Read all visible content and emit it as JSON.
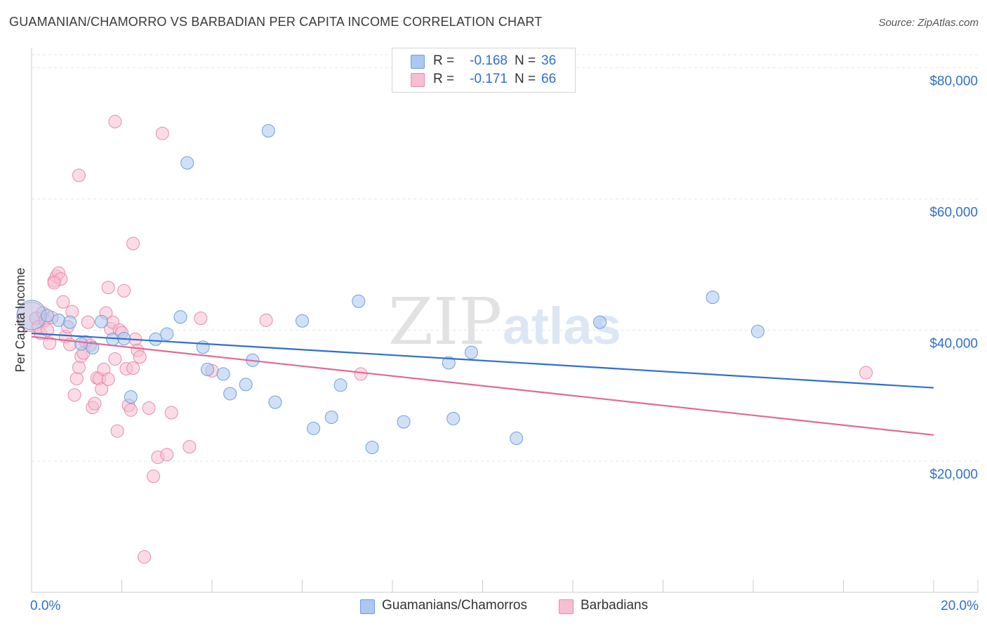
{
  "header": {
    "title": "GUAMANIAN/CHAMORRO VS BARBADIAN PER CAPITA INCOME CORRELATION CHART",
    "source": "Source: ZipAtlas.com"
  },
  "stats": {
    "rows": [
      {
        "r_label": "R =",
        "r_value": "-0.168",
        "n_label": "N =",
        "n_value": "36",
        "color": "#aac8f0",
        "border": "#6f9fdc"
      },
      {
        "r_label": "R =",
        "r_value": "-0.171",
        "n_label": "N =",
        "n_value": "66",
        "color": "#f7bfd1",
        "border": "#e88aaa"
      }
    ]
  },
  "legend": {
    "items": [
      {
        "label": "Guamanians/Chamorros",
        "color": "#aac8f0",
        "border": "#6f9fdc"
      },
      {
        "label": "Barbadians",
        "color": "#f7bfd1",
        "border": "#e88aaa"
      }
    ]
  },
  "watermark": {
    "zip": "ZIP",
    "atlas": "atlas"
  },
  "chart_data": {
    "type": "scatter",
    "title": "GUAMANIAN/CHAMORRO VS BARBADIAN PER CAPITA INCOME CORRELATION CHART",
    "xlabel": "",
    "ylabel": "Per Capita Income",
    "xlim": [
      0,
      20
    ],
    "ylim": [
      0,
      82000
    ],
    "x_tick_labels": [
      {
        "value": 0,
        "label": "0.0%"
      },
      {
        "value": 20,
        "label": "20.0%"
      }
    ],
    "y_ticks": [
      {
        "value": 20000,
        "label": "$20,000"
      },
      {
        "value": 40000,
        "label": "$40,000"
      },
      {
        "value": 60000,
        "label": "$60,000"
      },
      {
        "value": 80000,
        "label": "$80,000"
      }
    ],
    "grid": true,
    "colors": {
      "series_a_fill": "#aac8f0",
      "series_a_stroke": "#6f9fdc",
      "series_a_line": "#2f6fd0",
      "series_b_fill": "#f7bfd1",
      "series_b_stroke": "#e88aaa",
      "series_b_line": "#e06a95",
      "tick_label": "#2f6fd0",
      "grid": "#e6e6e6",
      "axis": "#cccccc"
    },
    "series": [
      {
        "name": "Guamanians/Chamorros",
        "trend": {
          "x": [
            0,
            20
          ],
          "y": [
            39500,
            31200
          ]
        },
        "points": [
          {
            "x": 0.0,
            "y": 42300,
            "big": true
          },
          {
            "x": 0.35,
            "y": 42200
          },
          {
            "x": 0.6,
            "y": 41500
          },
          {
            "x": 0.85,
            "y": 41200
          },
          {
            "x": 1.1,
            "y": 37900
          },
          {
            "x": 1.35,
            "y": 37300
          },
          {
            "x": 1.55,
            "y": 41300
          },
          {
            "x": 1.8,
            "y": 38600
          },
          {
            "x": 2.05,
            "y": 38700
          },
          {
            "x": 2.2,
            "y": 29800
          },
          {
            "x": 2.75,
            "y": 38600
          },
          {
            "x": 3.0,
            "y": 39400
          },
          {
            "x": 3.3,
            "y": 42000
          },
          {
            "x": 3.45,
            "y": 65500
          },
          {
            "x": 3.8,
            "y": 37400
          },
          {
            "x": 3.9,
            "y": 34000
          },
          {
            "x": 4.25,
            "y": 33300
          },
          {
            "x": 4.4,
            "y": 30300
          },
          {
            "x": 4.75,
            "y": 31700
          },
          {
            "x": 4.9,
            "y": 35400
          },
          {
            "x": 5.25,
            "y": 70400
          },
          {
            "x": 5.4,
            "y": 29000
          },
          {
            "x": 6.0,
            "y": 41400
          },
          {
            "x": 6.25,
            "y": 25000
          },
          {
            "x": 6.65,
            "y": 26700
          },
          {
            "x": 6.85,
            "y": 31600
          },
          {
            "x": 7.25,
            "y": 44400
          },
          {
            "x": 7.55,
            "y": 22100
          },
          {
            "x": 8.25,
            "y": 26000
          },
          {
            "x": 9.25,
            "y": 35000
          },
          {
            "x": 9.35,
            "y": 26500
          },
          {
            "x": 9.75,
            "y": 36600
          },
          {
            "x": 10.75,
            "y": 23500
          },
          {
            "x": 12.6,
            "y": 41200
          },
          {
            "x": 15.1,
            "y": 45000
          },
          {
            "x": 16.1,
            "y": 39800
          }
        ]
      },
      {
        "name": "Barbadians",
        "trend": {
          "x": [
            0,
            20
          ],
          "y": [
            39000,
            24000
          ]
        },
        "points": [
          {
            "x": 0.0,
            "y": 42000,
            "big": true
          },
          {
            "x": 0.1,
            "y": 41800
          },
          {
            "x": 0.15,
            "y": 40500
          },
          {
            "x": 0.2,
            "y": 39500
          },
          {
            "x": 0.25,
            "y": 42600
          },
          {
            "x": 0.3,
            "y": 41500
          },
          {
            "x": 0.35,
            "y": 40000
          },
          {
            "x": 0.4,
            "y": 38000
          },
          {
            "x": 0.45,
            "y": 41900
          },
          {
            "x": 0.5,
            "y": 47500
          },
          {
            "x": 0.55,
            "y": 48200
          },
          {
            "x": 0.6,
            "y": 48700
          },
          {
            "x": 0.65,
            "y": 47800
          },
          {
            "x": 0.7,
            "y": 44300
          },
          {
            "x": 0.75,
            "y": 39000
          },
          {
            "x": 0.8,
            "y": 40500
          },
          {
            "x": 0.85,
            "y": 37800
          },
          {
            "x": 0.9,
            "y": 42800
          },
          {
            "x": 0.95,
            "y": 30100
          },
          {
            "x": 1.0,
            "y": 32600
          },
          {
            "x": 1.05,
            "y": 34300
          },
          {
            "x": 1.1,
            "y": 36000
          },
          {
            "x": 1.15,
            "y": 36500
          },
          {
            "x": 1.2,
            "y": 38200
          },
          {
            "x": 1.25,
            "y": 41200
          },
          {
            "x": 1.3,
            "y": 37700
          },
          {
            "x": 1.35,
            "y": 28200
          },
          {
            "x": 1.4,
            "y": 28800
          },
          {
            "x": 1.45,
            "y": 32700
          },
          {
            "x": 1.5,
            "y": 32600
          },
          {
            "x": 1.55,
            "y": 31000
          },
          {
            "x": 1.6,
            "y": 34000
          },
          {
            "x": 1.65,
            "y": 42600
          },
          {
            "x": 1.7,
            "y": 32500
          },
          {
            "x": 1.75,
            "y": 40200
          },
          {
            "x": 1.8,
            "y": 41200
          },
          {
            "x": 1.85,
            "y": 35600
          },
          {
            "x": 1.9,
            "y": 24600
          },
          {
            "x": 1.95,
            "y": 40000
          },
          {
            "x": 2.0,
            "y": 39600
          },
          {
            "x": 2.05,
            "y": 46000
          },
          {
            "x": 2.1,
            "y": 34100
          },
          {
            "x": 2.15,
            "y": 28500
          },
          {
            "x": 2.2,
            "y": 27800
          },
          {
            "x": 2.25,
            "y": 34200
          },
          {
            "x": 2.3,
            "y": 38600
          },
          {
            "x": 2.35,
            "y": 36900
          },
          {
            "x": 2.4,
            "y": 35900
          },
          {
            "x": 2.5,
            "y": 5400
          },
          {
            "x": 2.6,
            "y": 28100
          },
          {
            "x": 2.7,
            "y": 17700
          },
          {
            "x": 2.8,
            "y": 20600
          },
          {
            "x": 3.0,
            "y": 21000
          },
          {
            "x": 3.1,
            "y": 27400
          },
          {
            "x": 3.5,
            "y": 22200
          },
          {
            "x": 3.75,
            "y": 41800
          },
          {
            "x": 4.0,
            "y": 33800
          },
          {
            "x": 5.2,
            "y": 41500
          },
          {
            "x": 7.3,
            "y": 33300
          },
          {
            "x": 18.5,
            "y": 33500
          },
          {
            "x": 1.05,
            "y": 63600
          },
          {
            "x": 1.85,
            "y": 71800
          },
          {
            "x": 2.9,
            "y": 70000
          },
          {
            "x": 2.25,
            "y": 53200
          },
          {
            "x": 1.7,
            "y": 46500
          },
          {
            "x": 0.5,
            "y": 47200
          }
        ]
      }
    ]
  }
}
